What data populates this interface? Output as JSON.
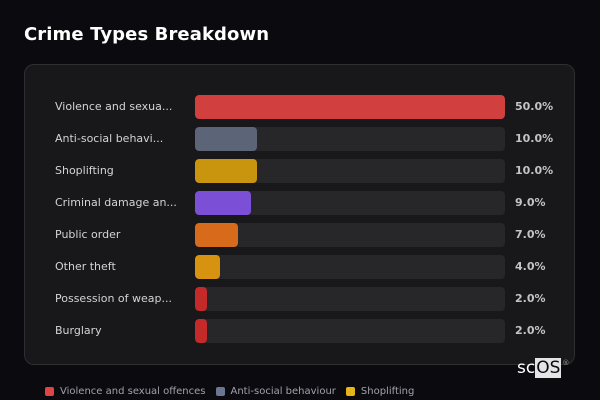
{
  "header": {
    "title": "Crime Types Breakdown"
  },
  "chart_data": {
    "type": "bar",
    "orientation": "horizontal",
    "title": "Crime Types Breakdown",
    "xlabel": "",
    "ylabel": "",
    "xlim": [
      0,
      50
    ],
    "grid": false,
    "legend_position": "bottom",
    "categories": [
      "Violence and sexua...",
      "Anti-social behavi...",
      "Shoplifting",
      "Criminal damage an...",
      "Public order",
      "Other theft",
      "Possession of weap...",
      "Burglary"
    ],
    "values": [
      50.0,
      10.0,
      10.0,
      9.0,
      7.0,
      4.0,
      2.0,
      2.0
    ],
    "value_labels": [
      "50.0%",
      "10.0%",
      "10.0%",
      "9.0%",
      "7.0%",
      "4.0%",
      "2.0%",
      "2.0%"
    ],
    "colors": [
      "#d13f3f",
      "#5b6577",
      "#c9950e",
      "#7b4fd6",
      "#d86a1c",
      "#d7930f",
      "#c42a2a",
      "#c42a2a"
    ]
  },
  "rows": [
    {
      "label": "Violence and sexua...",
      "value": 50.0,
      "pct": "50.0%",
      "color": "#d13f3f"
    },
    {
      "label": "Anti-social behavi...",
      "value": 10.0,
      "pct": "10.0%",
      "color": "#5b6577"
    },
    {
      "label": "Shoplifting",
      "value": 10.0,
      "pct": "10.0%",
      "color": "#c9950e"
    },
    {
      "label": "Criminal damage an...",
      "value": 9.0,
      "pct": "9.0%",
      "color": "#7b4fd6"
    },
    {
      "label": "Public order",
      "value": 7.0,
      "pct": "7.0%",
      "color": "#d86a1c"
    },
    {
      "label": "Other theft",
      "value": 4.0,
      "pct": "4.0%",
      "color": "#d7930f"
    },
    {
      "label": "Possession of weap...",
      "value": 2.0,
      "pct": "2.0%",
      "color": "#c42a2a"
    },
    {
      "label": "Burglary",
      "value": 2.0,
      "pct": "2.0%",
      "color": "#c42a2a"
    }
  ],
  "legend": [
    {
      "label": "Violence and sexual offences",
      "color": "#e04444"
    },
    {
      "label": "Anti-social behaviour",
      "color": "#6b7690"
    },
    {
      "label": "Shoplifting",
      "color": "#e5b51a"
    }
  ],
  "logo": {
    "left": "sc",
    "right": "OS",
    "mark": "®"
  }
}
